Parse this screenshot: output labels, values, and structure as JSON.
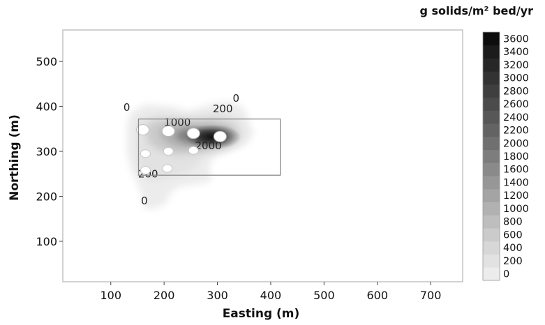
{
  "chart_data": {
    "type": "heatmap",
    "title": "",
    "unit_label": "g solids/m² bed/yr",
    "xlabel": "Easting (m)",
    "ylabel": "Northing (m)",
    "xlim": [
      10,
      760
    ],
    "ylim": [
      10,
      570
    ],
    "x_ticks": [
      100,
      200,
      300,
      400,
      500,
      600,
      700
    ],
    "y_ticks": [
      100,
      200,
      300,
      400,
      500
    ],
    "colorbar": {
      "levels": [
        0,
        200,
        400,
        600,
        800,
        1000,
        1200,
        1400,
        1600,
        1800,
        2000,
        2200,
        2400,
        2600,
        2800,
        3000,
        3200,
        3400,
        3600
      ],
      "colors": [
        "#ececec",
        "#e2e2e2",
        "#d7d7d7",
        "#cbcbcb",
        "#bebebe",
        "#b1b1b1",
        "#a4a4a4",
        "#979797",
        "#8a8a8a",
        "#7d7d7d",
        "#707070",
        "#636363",
        "#575757",
        "#4b4b4b",
        "#3f3f3f",
        "#333333",
        "#272727",
        "#1b1b1b",
        "#0d0d0d"
      ]
    },
    "contour_labels": [
      {
        "text": "0",
        "x": 130,
        "y": 390
      },
      {
        "text": "0",
        "x": 335,
        "y": 410
      },
      {
        "text": "200",
        "x": 310,
        "y": 387
      },
      {
        "text": "1000",
        "x": 225,
        "y": 357
      },
      {
        "text": "2000",
        "x": 283,
        "y": 305
      },
      {
        "text": "200",
        "x": 170,
        "y": 242
      },
      {
        "text": "0",
        "x": 163,
        "y": 182
      }
    ],
    "sources": [
      {
        "x": 160,
        "y": 348
      },
      {
        "x": 208,
        "y": 345
      },
      {
        "x": 255,
        "y": 340
      },
      {
        "x": 305,
        "y": 333
      },
      {
        "x": 165,
        "y": 295
      },
      {
        "x": 208,
        "y": 300
      },
      {
        "x": 255,
        "y": 302
      },
      {
        "x": 165,
        "y": 258
      },
      {
        "x": 206,
        "y": 262
      }
    ],
    "rectangle": {
      "x": [
        152,
        418
      ],
      "y": [
        247,
        372
      ]
    }
  }
}
